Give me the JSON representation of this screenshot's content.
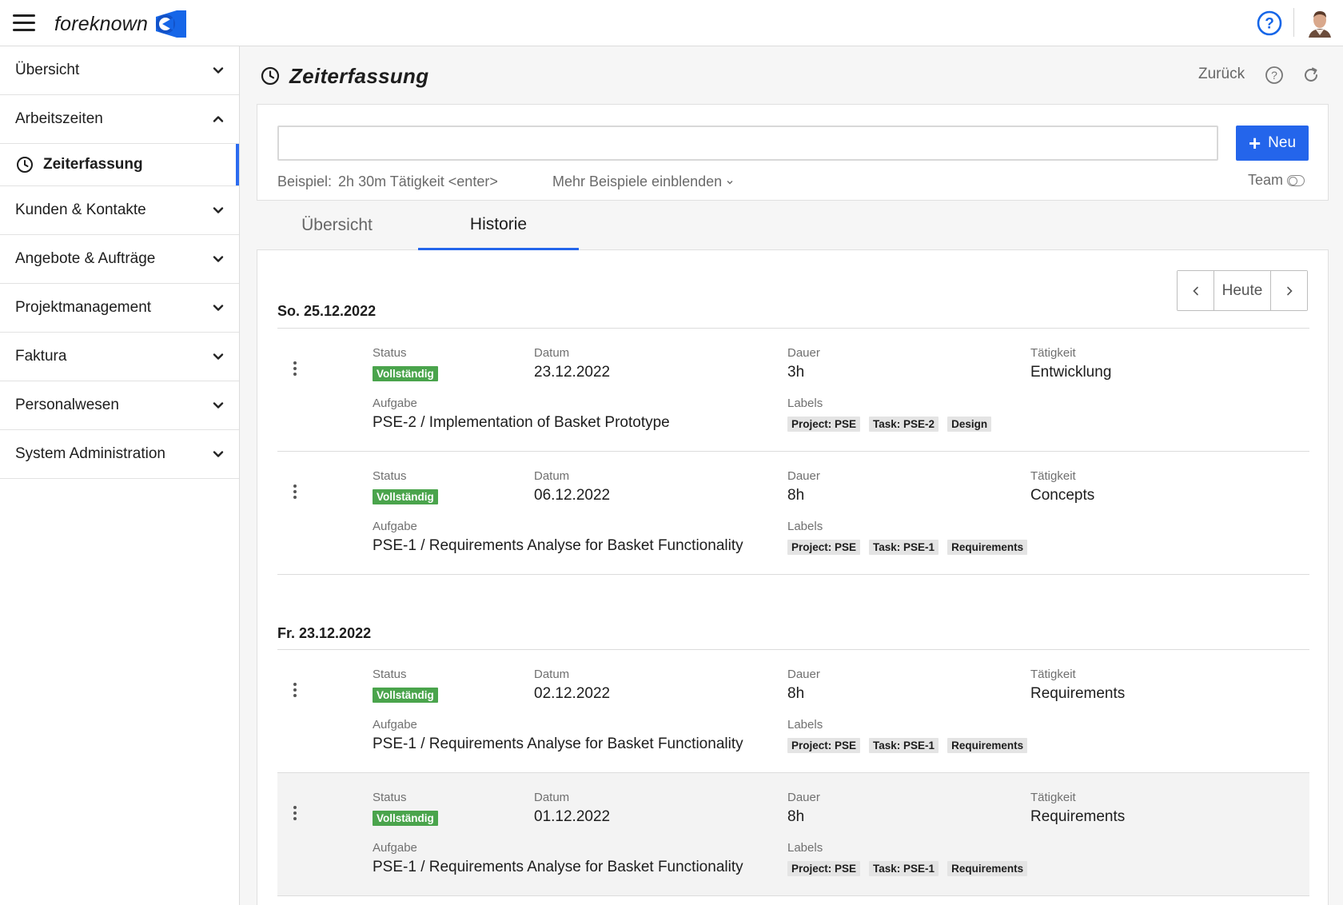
{
  "app": {
    "logo_text": "foreknown",
    "colors": {
      "accent": "#2465eb",
      "status_complete": "#4aa44c",
      "logo_blue": "#1666e8"
    }
  },
  "sidebar": {
    "items": [
      {
        "label": "Übersicht",
        "state": "collapsed"
      },
      {
        "label": "Arbeitszeiten",
        "state": "expanded"
      },
      {
        "label": "Kunden & Kontakte",
        "state": "collapsed"
      },
      {
        "label": "Angebote & Aufträge",
        "state": "collapsed"
      },
      {
        "label": "Projektmanagement",
        "state": "collapsed"
      },
      {
        "label": "Faktura",
        "state": "collapsed"
      },
      {
        "label": "Personalwesen",
        "state": "collapsed"
      },
      {
        "label": "System Administration",
        "state": "collapsed"
      }
    ],
    "active_sub": {
      "label": "Zeiterfassung",
      "icon": "clock-icon"
    }
  },
  "header": {
    "title": "Zeiterfassung",
    "back_label": "Zurück"
  },
  "quick_entry": {
    "input_value": "",
    "new_button": "Neu",
    "example_label": "Beispiel:",
    "example_value": "2h 30m Tätigkeit <enter>",
    "more_examples": "Mehr Beispiele einblenden",
    "team_label": "Team",
    "team_toggle": false
  },
  "tabs": [
    {
      "label": "Übersicht",
      "active": false
    },
    {
      "label": "Historie",
      "active": true
    }
  ],
  "pager": {
    "today_label": "Heute"
  },
  "field_labels": {
    "status": "Status",
    "datum": "Datum",
    "dauer": "Dauer",
    "taetigkeit": "Tätigkeit",
    "aufgabe": "Aufgabe",
    "labels": "Labels"
  },
  "days": [
    {
      "date": "So. 25.12.2022",
      "entries": [
        {
          "status": "Vollständig",
          "datum": "23.12.2022",
          "dauer": "3h",
          "taetigkeit": "Entwicklung",
          "aufgabe": "PSE-2 / Implementation of Basket Prototype",
          "labels": [
            "Project: PSE",
            "Task: PSE-2",
            "Design"
          ]
        },
        {
          "status": "Vollständig",
          "datum": "06.12.2022",
          "dauer": "8h",
          "taetigkeit": "Concepts",
          "aufgabe": "PSE-1 / Requirements Analyse for Basket Functionality",
          "labels": [
            "Project: PSE",
            "Task: PSE-1",
            "Requirements"
          ]
        }
      ]
    },
    {
      "date": "Fr. 23.12.2022",
      "entries": [
        {
          "status": "Vollständig",
          "datum": "02.12.2022",
          "dauer": "8h",
          "taetigkeit": "Requirements",
          "aufgabe": "PSE-1 / Requirements Analyse for Basket Functionality",
          "labels": [
            "Project: PSE",
            "Task: PSE-1",
            "Requirements"
          ]
        },
        {
          "status": "Vollständig",
          "datum": "01.12.2022",
          "dauer": "8h",
          "taetigkeit": "Requirements",
          "aufgabe": "PSE-1 / Requirements Analyse for Basket Functionality",
          "labels": [
            "Project: PSE",
            "Task: PSE-1",
            "Requirements"
          ],
          "highlighted": true
        }
      ]
    }
  ]
}
